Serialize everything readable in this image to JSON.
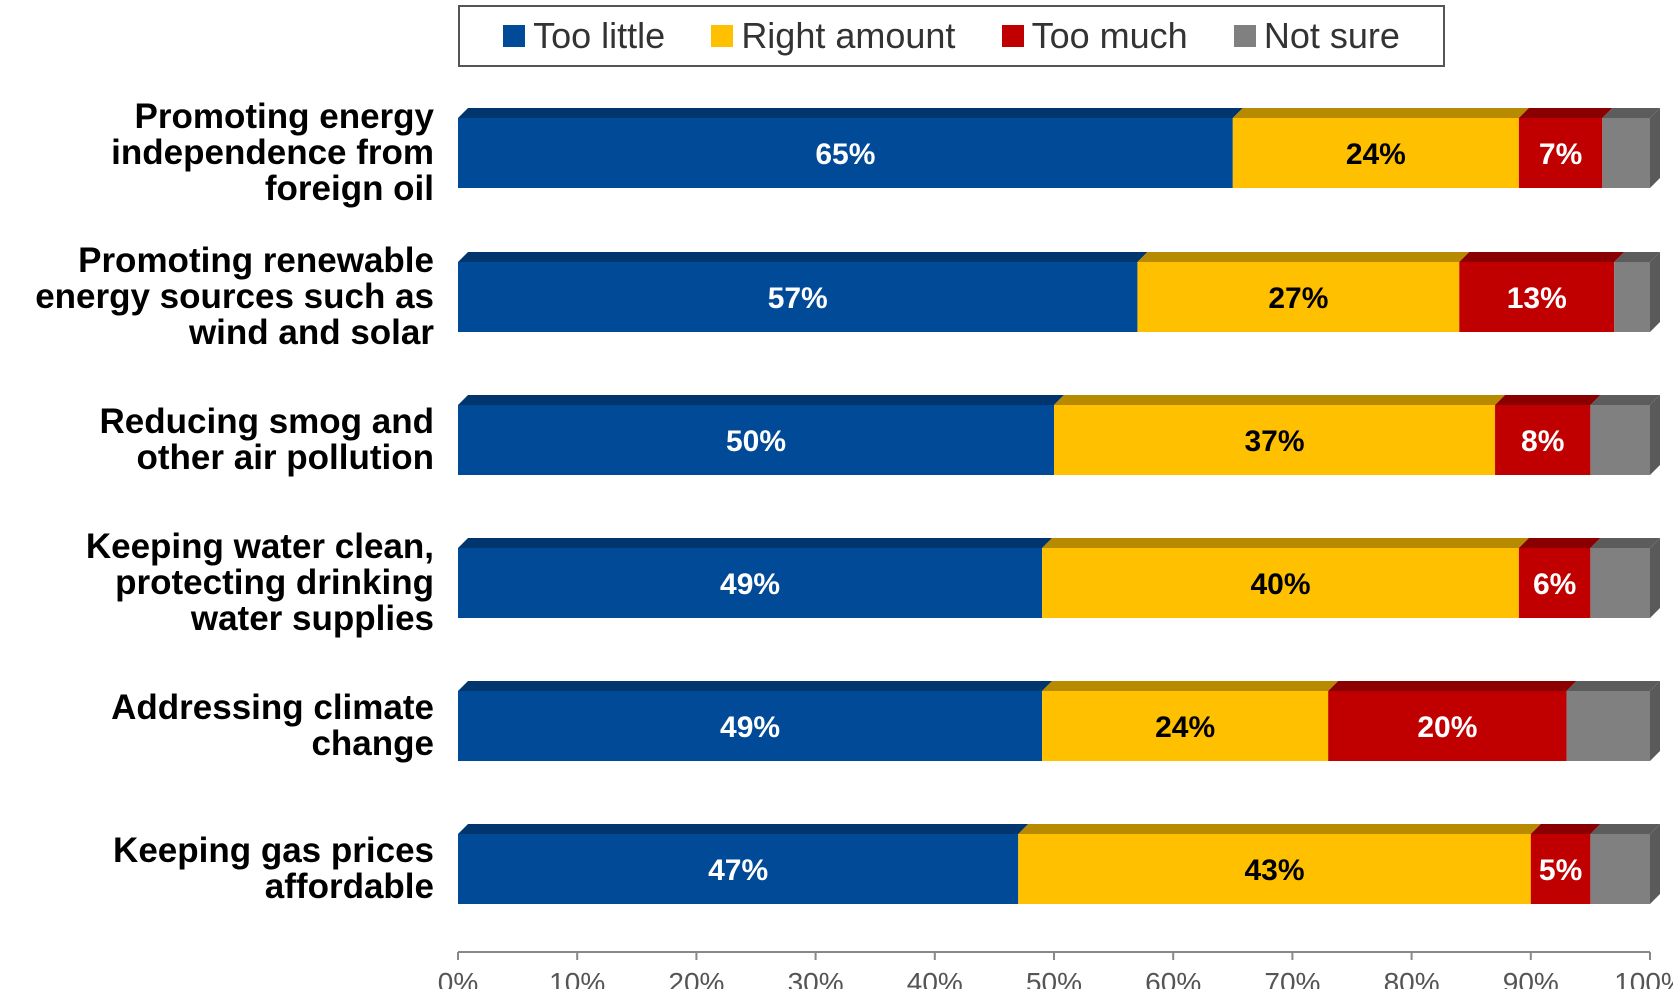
{
  "chart_data": {
    "type": "bar",
    "orientation": "horizontal",
    "stacked": true,
    "categories": [
      "Promoting energy\nindependence from\nforeign oil",
      "Promoting renewable\nenergy sources such as\nwind and solar",
      "Reducing smog and\nother air pollution",
      "Keeping water clean,\nprotecting drinking\nwater supplies",
      "Addressing climate\nchange",
      "Keeping gas prices\naffordable"
    ],
    "series": [
      {
        "name": "Too little",
        "color": "#004a97",
        "values": [
          65,
          57,
          50,
          49,
          49,
          47
        ],
        "labels": [
          "65%",
          "57%",
          "50%",
          "49%",
          "49%",
          "47%"
        ]
      },
      {
        "name": "Right amount",
        "color": "#ffc000",
        "values": [
          24,
          27,
          37,
          40,
          24,
          43
        ],
        "labels": [
          "24%",
          "27%",
          "37%",
          "40%",
          "24%",
          "43%"
        ]
      },
      {
        "name": "Too much",
        "color": "#c00000",
        "values": [
          7,
          13,
          8,
          6,
          20,
          5
        ],
        "labels": [
          "7%",
          "13%",
          "8%",
          "6%",
          "20%",
          "5%"
        ]
      },
      {
        "name": "Not sure",
        "color": "#808080",
        "values": [
          4,
          3,
          5,
          5,
          7,
          5
        ],
        "labels": [
          "",
          "",
          "",
          "",
          "",
          ""
        ]
      }
    ],
    "xlim": [
      0,
      100
    ],
    "x_ticks": [
      "0%",
      "10%",
      "20%",
      "30%",
      "40%",
      "50%",
      "60%",
      "70%",
      "80%",
      "90%",
      "100%"
    ],
    "legend_position": "top",
    "grid": false
  }
}
